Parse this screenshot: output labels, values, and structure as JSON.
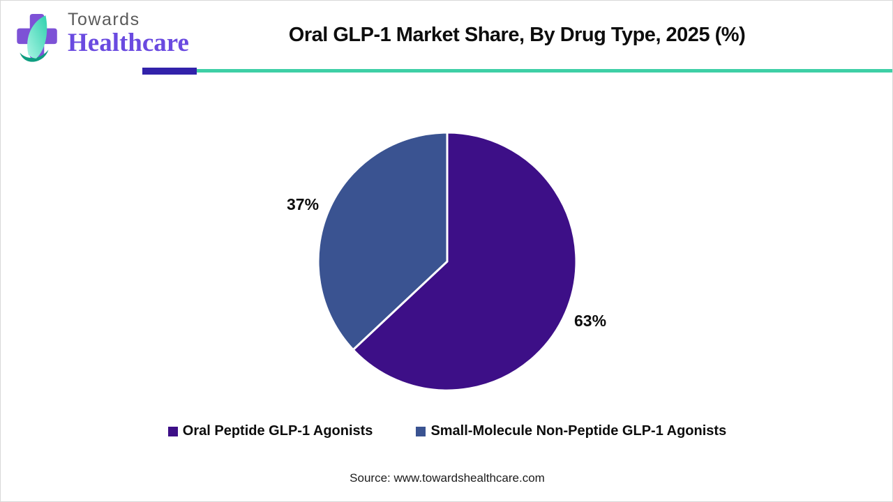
{
  "logo": {
    "line1": "Towards",
    "line2": "Healthcare"
  },
  "header": {
    "title": "Oral GLP-1 Market Share, By Drug Type, 2025 (%)"
  },
  "chart_data": {
    "type": "pie",
    "title": "Oral GLP-1 Market Share, By Drug Type, 2025 (%)",
    "categories": [
      "Oral Peptide GLP-1 Agonists",
      "Small-Molecule Non-Peptide GLP-1 Agonists"
    ],
    "values": [
      63,
      37
    ],
    "slice_labels": [
      "63%",
      "37%"
    ],
    "colors": [
      "#3d0f87",
      "#3a5391"
    ],
    "start_angle_deg": 0,
    "direction": "clockwise",
    "slice_stroke_color": "#ffffff",
    "legend_position": "bottom"
  },
  "legend": {
    "items": [
      {
        "label": "Oral Peptide GLP-1 Agonists",
        "color": "#3d0f87"
      },
      {
        "label": "Small-Molecule Non-Peptide GLP-1 Agonists",
        "color": "#3a5391"
      }
    ]
  },
  "footer": {
    "source_text": "Source: www.towardshealthcare.com"
  },
  "accent": {
    "bar_color": "#3222aa",
    "line_color": "#3ecfa6",
    "logo_cross": "#7d52d6",
    "logo_leaf_from": "#a9f5e3",
    "logo_leaf_to": "#2fd0ae",
    "logo_swoosh": "#0e9d80",
    "towards_color": "#5a5a5a",
    "healthcare_color": "#6a4ae0"
  }
}
